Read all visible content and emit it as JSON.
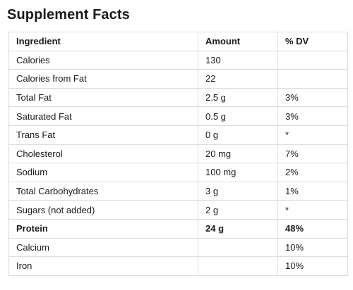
{
  "title": "Supplement Facts",
  "table": {
    "headers": [
      "Ingredient",
      "Amount",
      "% DV"
    ],
    "rows": [
      {
        "ingredient": "Calories",
        "amount": "130",
        "dv": ""
      },
      {
        "ingredient": "Calories from Fat",
        "amount": "22",
        "dv": ""
      },
      {
        "ingredient": "Total Fat",
        "amount": "2.5 g",
        "dv": "3%"
      },
      {
        "ingredient": "Saturated Fat",
        "amount": "0.5 g",
        "dv": "3%"
      },
      {
        "ingredient": "Trans Fat",
        "amount": "0 g",
        "dv": "*"
      },
      {
        "ingredient": "Cholesterol",
        "amount": "20 mg",
        "dv": "7%"
      },
      {
        "ingredient": "Sodium",
        "amount": "100 mg",
        "dv": "2%"
      },
      {
        "ingredient": "Total Carbohydrates",
        "amount": "3 g",
        "dv": "1%"
      },
      {
        "ingredient": "Sugars (not added)",
        "amount": "2 g",
        "dv": "*"
      },
      {
        "ingredient": "Protein",
        "amount": "24 g",
        "dv": "48%",
        "bold": true
      },
      {
        "ingredient": "Calcium",
        "amount": "",
        "dv": "10%"
      },
      {
        "ingredient": "Iron",
        "amount": "",
        "dv": "10%"
      }
    ]
  }
}
